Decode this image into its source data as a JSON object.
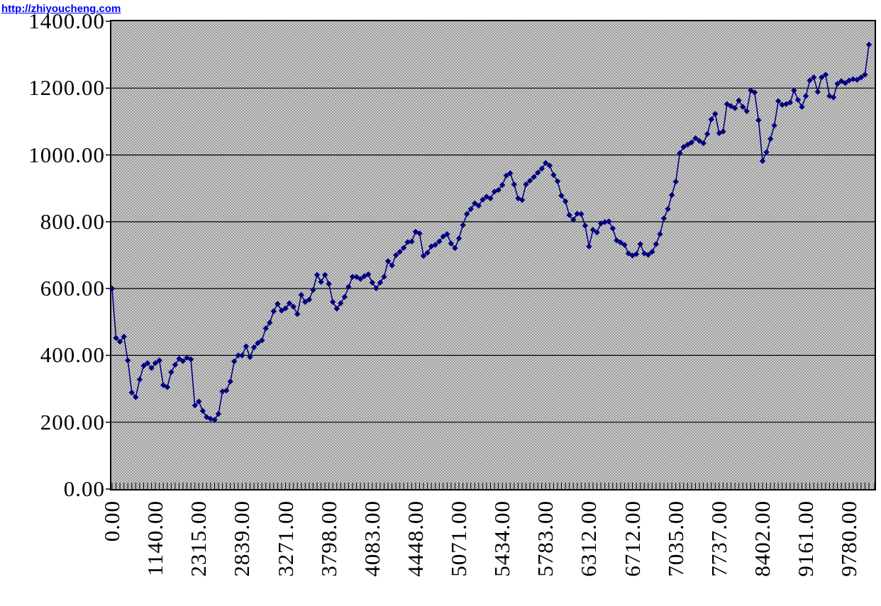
{
  "watermark": {
    "text": "http://zhiyoucheng.com",
    "color": "#0000ff"
  },
  "chart_data": {
    "type": "line",
    "title": "",
    "legend": "none",
    "grid": "horizontal-only",
    "plot_background": {
      "fill": "#d4d4d4",
      "dot": "#989898",
      "border": "#000000"
    },
    "series_color": "#000080",
    "marker": "diamond",
    "y_axis": {
      "min": 0,
      "max": 1400,
      "step": 200,
      "tick_labels": [
        "0.00",
        "200.00",
        "400.00",
        "600.00",
        "800.00",
        "1000.00",
        "1200.00",
        "1400.00"
      ]
    },
    "x_axis": {
      "tick_labels": [
        "0.00",
        "1140.00",
        "2315.00",
        "2839.00",
        "3271.00",
        "3798.00",
        "4083.00",
        "4448.00",
        "5071.00",
        "5434.00",
        "5783.00",
        "6312.00",
        "6712.00",
        "7035.00",
        "7737.00",
        "8402.00",
        "9161.00",
        "9780.00"
      ],
      "label_interval": 11
    },
    "values": [
      600,
      452,
      441,
      456,
      385,
      289,
      275,
      328,
      369,
      377,
      362,
      377,
      385,
      311,
      305,
      350,
      372,
      390,
      383,
      393,
      388,
      250,
      262,
      234,
      215,
      210,
      207,
      225,
      292,
      295,
      322,
      382,
      400,
      400,
      427,
      395,
      424,
      437,
      445,
      481,
      498,
      532,
      554,
      534,
      541,
      556,
      546,
      524,
      581,
      560,
      567,
      596,
      641,
      620,
      641,
      614,
      560,
      540,
      556,
      575,
      605,
      635,
      635,
      629,
      637,
      643,
      618,
      601,
      618,
      635,
      682,
      669,
      700,
      710,
      722,
      739,
      741,
      770,
      765,
      698,
      707,
      726,
      731,
      741,
      756,
      763,
      735,
      721,
      750,
      790,
      823,
      838,
      855,
      848,
      866,
      875,
      870,
      890,
      895,
      910,
      938,
      945,
      912,
      870,
      865,
      912,
      923,
      934,
      947,
      959,
      976,
      968,
      940,
      921,
      878,
      861,
      820,
      806,
      824,
      823,
      788,
      726,
      776,
      768,
      795,
      799,
      801,
      780,
      744,
      738,
      731,
      705,
      699,
      703,
      733,
      705,
      701,
      710,
      733,
      763,
      810,
      838,
      880,
      920,
      1005,
      1024,
      1031,
      1037,
      1050,
      1042,
      1035,
      1063,
      1106,
      1123,
      1065,
      1070,
      1152,
      1146,
      1140,
      1163,
      1144,
      1131,
      1193,
      1187,
      1104,
      982,
      1008,
      1048,
      1088,
      1161,
      1150,
      1152,
      1157,
      1193,
      1165,
      1144,
      1176,
      1223,
      1232,
      1189,
      1232,
      1240,
      1176,
      1172,
      1213,
      1221,
      1215,
      1223,
      1227,
      1225,
      1232,
      1240,
      1330
    ]
  }
}
